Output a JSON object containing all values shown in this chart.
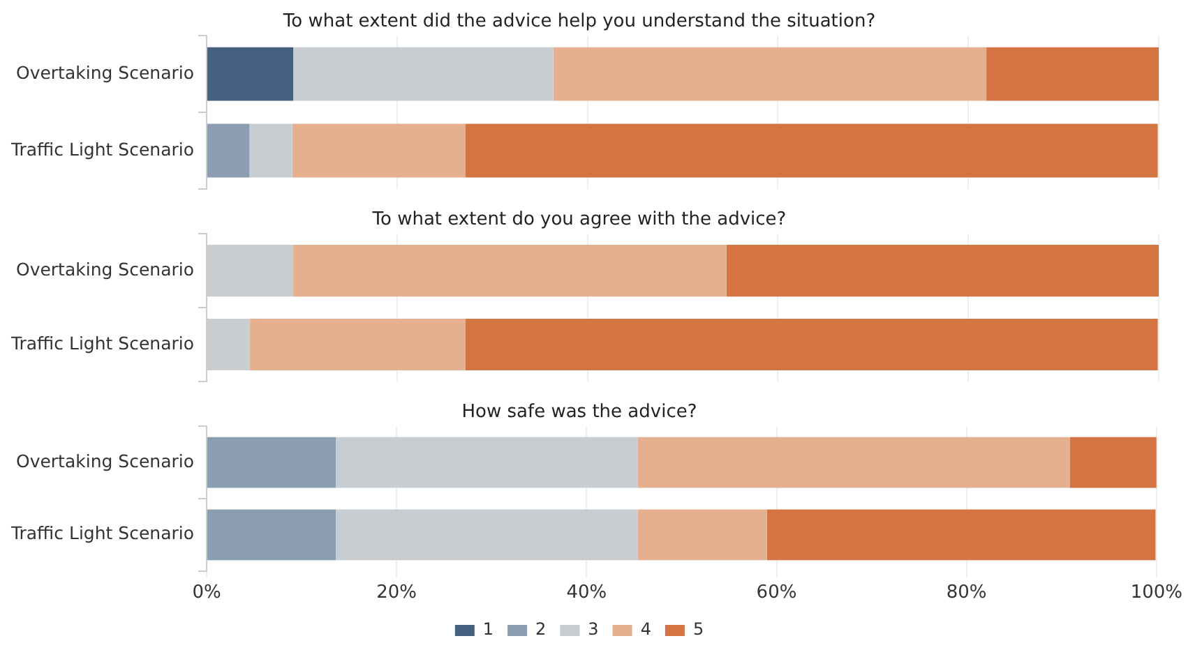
{
  "chart_data": [
    {
      "type": "bar",
      "orientation": "horizontal",
      "stacked": true,
      "title": "To what extent did the advice help you understand the situation?",
      "categories": [
        "Overtaking Scenario",
        "Traffic Light Scenario"
      ],
      "series": [
        {
          "color": "#44617f",
          "values": [
            9.1,
            0
          ]
        },
        {
          "color": "#8a9db1",
          "values": [
            0,
            4.5
          ]
        },
        {
          "color": "#c8cdd2",
          "values": [
            27.3,
            4.5
          ]
        },
        {
          "color": "#e4b08f",
          "values": [
            45.5,
            18.2
          ]
        },
        {
          "color": "#d57443",
          "values": [
            18.2,
            72.7
          ]
        }
      ],
      "xlim": [
        0,
        100
      ],
      "xticks": [
        {
          "value": 0,
          "label": null
        },
        {
          "value": 20,
          "label": null
        },
        {
          "value": 40,
          "label": null
        },
        {
          "value": 60,
          "label": null
        },
        {
          "value": 80,
          "label": null
        },
        {
          "value": 100,
          "label": null
        }
      ],
      "tick_labels": "y",
      "grid": "x",
      "legend": false
    },
    {
      "type": "bar",
      "orientation": "horizontal",
      "stacked": true,
      "title": "To what extent do you agree with the advice?",
      "categories": [
        "Overtaking Scenario",
        "Traffic Light Scenario"
      ],
      "series": [
        {
          "color": "#44617f",
          "values": [
            0,
            0
          ]
        },
        {
          "color": "#8a9db1",
          "values": [
            0,
            0
          ]
        },
        {
          "color": "#c8cdd2",
          "values": [
            9.1,
            4.5
          ]
        },
        {
          "color": "#e4b08f",
          "values": [
            45.5,
            22.7
          ]
        },
        {
          "color": "#d57443",
          "values": [
            45.5,
            72.7
          ]
        }
      ],
      "xlim": [
        0,
        100
      ],
      "xticks": [
        {
          "value": 0,
          "label": null
        },
        {
          "value": 20,
          "label": null
        },
        {
          "value": 40,
          "label": null
        },
        {
          "value": 60,
          "label": null
        },
        {
          "value": 80,
          "label": null
        },
        {
          "value": 100,
          "label": null
        }
      ],
      "tick_labels": "y",
      "grid": "x",
      "legend": false
    },
    {
      "type": "bar",
      "orientation": "horizontal",
      "stacked": true,
      "title": "How safe was the advice?",
      "categories": [
        "Overtaking Scenario",
        "Traffic Light Scenario"
      ],
      "series": [
        {
          "name": "1",
          "color": "#44617f",
          "values": [
            0,
            0
          ]
        },
        {
          "name": "2",
          "color": "#8a9db1",
          "values": [
            13.6,
            13.6
          ]
        },
        {
          "name": "3",
          "color": "#c8cdd2",
          "values": [
            31.8,
            31.8
          ]
        },
        {
          "name": "4",
          "color": "#e4b08f",
          "values": [
            45.5,
            13.6
          ]
        },
        {
          "name": "5",
          "color": "#d57443",
          "values": [
            9.1,
            40.9
          ]
        }
      ],
      "xlim": [
        0,
        100
      ],
      "xticks": [
        {
          "value": 0,
          "label": "0%"
        },
        {
          "value": 20,
          "label": "20%"
        },
        {
          "value": 40,
          "label": "40%"
        },
        {
          "value": 60,
          "label": "60%"
        },
        {
          "value": 80,
          "label": "80%"
        },
        {
          "value": 100,
          "label": "100%"
        }
      ],
      "grid": "x",
      "legend": "bottom"
    }
  ]
}
